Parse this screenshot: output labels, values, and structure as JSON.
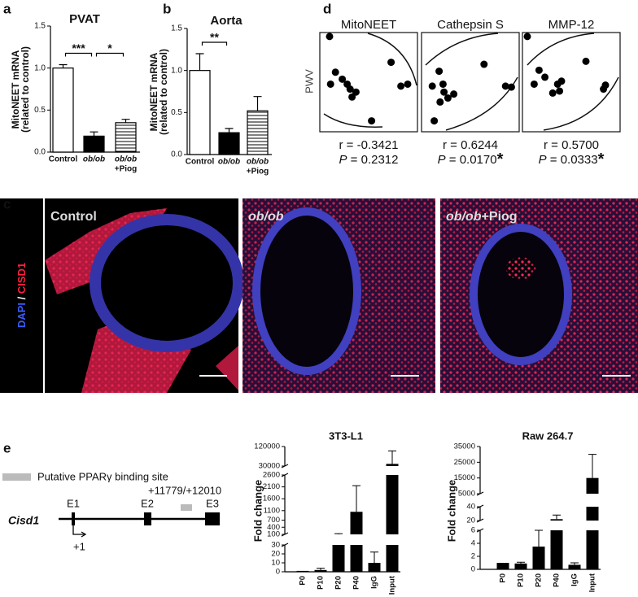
{
  "panel_labels": [
    "a",
    "b",
    "c",
    "d",
    "e"
  ],
  "chart_data": [
    {
      "type": "bar",
      "title": "PVAT",
      "y_label": [
        "MitoNEET mRNA",
        "(related to control)"
      ],
      "categories": [
        [
          "Control"
        ],
        [
          "ob/ob"
        ],
        [
          "ob/ob",
          "+Piog"
        ]
      ],
      "values": [
        1.0,
        0.19,
        0.35
      ],
      "errors": [
        0.04,
        0.05,
        0.04
      ],
      "fills": [
        "white",
        "black",
        "hatch"
      ],
      "ylim": [
        0,
        1.5
      ],
      "yticks": [
        {
          "value": 0,
          "label": "0.0"
        },
        0.5,
        {
          "value": 1,
          "label": "1.0"
        },
        1.5
      ],
      "significance": [
        "***",
        "*"
      ]
    },
    {
      "type": "bar",
      "title": "Aorta",
      "y_label": [
        "MitoNEET mRNA",
        "(related to control)"
      ],
      "categories": [
        [
          "Control"
        ],
        [
          "ob/ob"
        ],
        [
          "ob/ob",
          "+Piog"
        ]
      ],
      "values": [
        1.0,
        0.26,
        0.52
      ],
      "errors": [
        0.2,
        0.05,
        0.17
      ],
      "fills": [
        "white",
        "black",
        "hatch"
      ],
      "ylim": [
        0,
        1.5
      ],
      "yticks": [
        {
          "value": 0,
          "label": "0.0"
        },
        0.5,
        {
          "value": 1,
          "label": "1.0"
        },
        1.5
      ],
      "significance": [
        "**"
      ]
    },
    {
      "type": "scatter",
      "title": "MitoNEET",
      "y_label": "PWV",
      "x": [
        0.1,
        0.73,
        0.16,
        0.23,
        0.11,
        0.28,
        0.31,
        0.37,
        0.33,
        0.53,
        0.83,
        0.9
      ],
      "y": [
        0.96,
        0.7,
        0.6,
        0.53,
        0.48,
        0.48,
        0.43,
        0.4,
        0.35,
        0.11,
        0.46,
        0.48
      ],
      "xlim": [
        0,
        1
      ],
      "ylim": [
        0,
        1
      ],
      "r_label": "r = -0.3421",
      "p_name": "P",
      "p_value": " = 0.2312"
    },
    {
      "type": "scatter",
      "title": "Cathepsin S",
      "x": [
        0.64,
        0.18,
        0.11,
        0.22,
        0.23,
        0.27,
        0.33,
        0.19,
        0.13,
        0.86,
        0.92
      ],
      "y": [
        0.68,
        0.61,
        0.46,
        0.48,
        0.4,
        0.34,
        0.38,
        0.3,
        0.11,
        0.46,
        0.45
      ],
      "xlim": [
        0,
        1
      ],
      "ylim": [
        0,
        1
      ],
      "r_label": "r = 0.6244",
      "p_name": "P",
      "p_value": " = 0.0170",
      "star": "*"
    },
    {
      "type": "scatter",
      "title": "MMP-12",
      "x": [
        0.05,
        0.65,
        0.17,
        0.23,
        0.12,
        0.36,
        0.4,
        0.31,
        0.38,
        0.85,
        0.83
      ],
      "y": [
        0.96,
        0.71,
        0.62,
        0.55,
        0.48,
        0.48,
        0.51,
        0.39,
        0.41,
        0.47,
        0.43
      ],
      "xlim": [
        0,
        1
      ],
      "ylim": [
        0,
        1
      ],
      "r_label": "r = 0.5700",
      "p_name": "P",
      "p_value": " = 0.0333",
      "star": "*"
    },
    {
      "type": "broken_bar",
      "title": "3T3-L1",
      "y_label": "Fold change",
      "categories": [
        "P0",
        "P10",
        "P20",
        "P40",
        "IgG",
        "Input"
      ],
      "values": [
        1,
        2,
        100,
        1050,
        10,
        40000
      ],
      "errors": [
        0,
        2,
        30,
        1100,
        12,
        60000
      ],
      "color": "#000000",
      "y_segments": [
        [
          0,
          30
        ],
        [
          100,
          2600
        ],
        [
          30000,
          120000
        ]
      ],
      "yticks": [
        0,
        10,
        20,
        30,
        100,
        400,
        700,
        1100,
        1600,
        2100,
        2600,
        30000,
        120000
      ]
    },
    {
      "type": "broken_bar",
      "title": "Raw 264.7",
      "y_label": "Fold change",
      "categories": [
        "P0",
        "P10",
        "P20",
        "P40",
        "IgG",
        "Input"
      ],
      "values": [
        1,
        0.9,
        3.5,
        22,
        0.7,
        15000
      ],
      "errors": [
        0,
        0.2,
        2.5,
        6,
        0.3,
        15000
      ],
      "color": "#000000",
      "y_segments": [
        [
          0,
          6
        ],
        [
          20,
          40
        ],
        [
          5000,
          35000
        ]
      ],
      "yticks": [
        0,
        2,
        4,
        6,
        20,
        40,
        5000,
        15000,
        25000,
        35000
      ]
    }
  ],
  "microscopy": {
    "stain": [
      "DAPI",
      " / ",
      "CISD1"
    ],
    "images": [
      [
        "Control"
      ],
      [
        "ob/ob"
      ],
      [
        "ob/ob",
        "+Piog"
      ]
    ]
  },
  "gene_diagram": {
    "legend": "Putative PPARγ binding site",
    "site": "+11779/+12010",
    "gene": "Cisd1",
    "exons": [
      "E1",
      "E2",
      "E3"
    ],
    "tss": "+1"
  }
}
